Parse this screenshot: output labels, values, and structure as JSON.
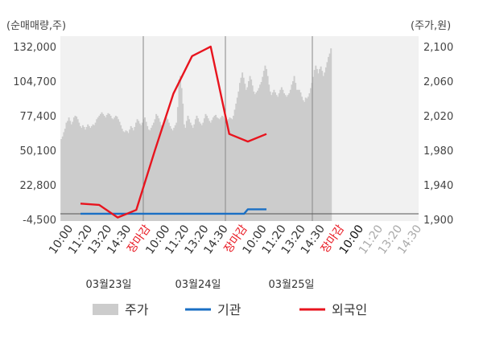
{
  "chart_data": {
    "type": "bar+line",
    "left_unit_label": "(순매매량,주)",
    "right_unit_label": "(주가,원)",
    "left_axis": {
      "ticks": [
        "132,000",
        "104,700",
        "77,400",
        "50,100",
        "22,800",
        "-4,500"
      ],
      "values": [
        132000,
        104700,
        77400,
        50100,
        22800,
        -4500
      ],
      "range": [
        -4500,
        132000
      ]
    },
    "right_axis": {
      "ticks": [
        "2,100",
        "2,060",
        "2,020",
        "1,980",
        "1,940",
        "1,900"
      ],
      "values": [
        2100,
        2060,
        2020,
        1980,
        1940,
        1900
      ],
      "range": [
        1900,
        2100
      ]
    },
    "x_tick_labels": [
      {
        "text": "10:00",
        "color": "#333333"
      },
      {
        "text": "11:20",
        "color": "#333333"
      },
      {
        "text": "13:20",
        "color": "#333333"
      },
      {
        "text": "14:30",
        "color": "#333333"
      },
      {
        "text": "장마감",
        "color": "#e8141e"
      },
      {
        "text": "10:00",
        "color": "#333333"
      },
      {
        "text": "11:20",
        "color": "#333333"
      },
      {
        "text": "13:20",
        "color": "#333333"
      },
      {
        "text": "14:30",
        "color": "#333333"
      },
      {
        "text": "장마감",
        "color": "#e8141e"
      },
      {
        "text": "10:00",
        "color": "#333333"
      },
      {
        "text": "11:20",
        "color": "#333333"
      },
      {
        "text": "13:20",
        "color": "#333333"
      },
      {
        "text": "14:30",
        "color": "#333333"
      },
      {
        "text": "장마감",
        "color": "#e8141e"
      },
      {
        "text": "10:00",
        "color": "#111111"
      },
      {
        "text": "11:20",
        "color": "#aaaaaa"
      },
      {
        "text": "13:20",
        "color": "#aaaaaa"
      },
      {
        "text": "14:30",
        "color": "#aaaaaa"
      }
    ],
    "date_labels": [
      "03월23일",
      "03월24일",
      "03월25일"
    ],
    "series": [
      {
        "name": "주가",
        "kind": "area",
        "axis": "right",
        "color": "#cccccc",
        "values": [
          1993,
          1996,
          2001,
          2005,
          2012,
          2014,
          2018,
          2014,
          2010,
          2013,
          2018,
          2020,
          2019,
          2016,
          2012,
          2008,
          2006,
          2009,
          2007,
          2004,
          2007,
          2010,
          2008,
          2006,
          2008,
          2010,
          2009,
          2012,
          2016,
          2018,
          2020,
          2022,
          2024,
          2022,
          2020,
          2018,
          2021,
          2023,
          2022,
          2020,
          2017,
          2016,
          2018,
          2020,
          2019,
          2016,
          2013,
          2009,
          2005,
          2002,
          2001,
          2003,
          2002,
          2000,
          2004,
          2008,
          2006,
          2003,
          2007,
          2012,
          2016,
          2014,
          2011,
          2009,
          2012,
          2016,
          2018,
          2013,
          2008,
          2004,
          2003,
          2006,
          2009,
          2012,
          2016,
          2022,
          2020,
          2017,
          2013,
          2009,
          2006,
          2010,
          2014,
          2018,
          2016,
          2012,
          2008,
          2005,
          2003,
          2006,
          2009,
          2012,
          2030,
          2062,
          2066,
          2052,
          2034,
          2010,
          2006,
          2014,
          2020,
          2016,
          2012,
          2009,
          2006,
          2010,
          2016,
          2020,
          2017,
          2013,
          2011,
          2009,
          2012,
          2017,
          2022,
          2020,
          2017,
          2014,
          2012,
          2015,
          2018,
          2020,
          2021,
          2018,
          2017,
          2016,
          2018,
          2020,
          2019,
          2017,
          2016,
          2014,
          2016,
          2018,
          2017,
          2016,
          2020,
          2027,
          2034,
          2041,
          2048,
          2058,
          2064,
          2070,
          2064,
          2057,
          2050,
          2053,
          2060,
          2066,
          2062,
          2055,
          2048,
          2045,
          2047,
          2049,
          2052,
          2056,
          2059,
          2065,
          2072,
          2078,
          2074,
          2066,
          2056,
          2048,
          2044,
          2047,
          2050,
          2047,
          2044,
          2042,
          2046,
          2050,
          2053,
          2050,
          2046,
          2044,
          2042,
          2044,
          2046,
          2050,
          2056,
          2060,
          2066,
          2058,
          2050,
          2050,
          2050,
          2047,
          2042,
          2038,
          2036,
          2041,
          2040,
          2042,
          2046,
          2052,
          2058,
          2065,
          2073,
          2078,
          2074,
          2069,
          2074,
          2077,
          2072,
          2066,
          2070,
          2076,
          2082,
          2088,
          2092,
          2098
        ]
      },
      {
        "name": "기관",
        "kind": "line",
        "axis": "left",
        "color": "#1a6fc4",
        "x": [
          0,
          5,
          10,
          15,
          20,
          25,
          30,
          35,
          40,
          44,
          45,
          50
        ],
        "values": [
          0,
          0,
          0,
          0,
          0,
          0,
          0,
          0,
          0,
          0,
          3500,
          3500
        ]
      },
      {
        "name": "외국인",
        "kind": "line",
        "axis": "left",
        "color": "#e8141e",
        "x": [
          0,
          5,
          10,
          15,
          20,
          25,
          30,
          35,
          40,
          45,
          50
        ],
        "values": [
          8000,
          7000,
          -3000,
          3000,
          50000,
          95000,
          124500,
          132000,
          63000,
          57000,
          63000
        ]
      }
    ],
    "legend": [
      {
        "label": "주가",
        "color": "#cccccc",
        "kind": "box"
      },
      {
        "label": "기관",
        "color": "#1a6fc4",
        "kind": "line"
      },
      {
        "label": "외국인",
        "color": "#e8141e",
        "kind": "line"
      }
    ],
    "legend_position": "bottom",
    "grid": "vertical session dividers"
  }
}
